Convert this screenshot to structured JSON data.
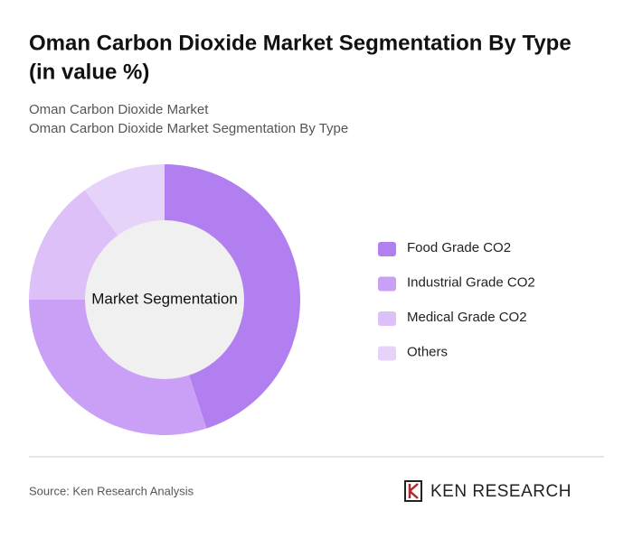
{
  "chart_data": {
    "type": "donut",
    "title": [
      "Oman Carbon Dioxide Market Segmentation By Type",
      "(in value %)"
    ],
    "subtitle": [
      "Oman Carbon Dioxide Market",
      "Oman Carbon Dioxide Market Segmentation By Type"
    ],
    "center_label": "Market Segmentation",
    "series": [
      {
        "name": "Food Grade CO2",
        "color": "#b27ff0",
        "values": [
          45
        ]
      },
      {
        "name": "Industrial Grade CO2",
        "color": "#c9a0f5",
        "values": [
          30
        ]
      },
      {
        "name": "Medical Grade CO2",
        "color": "#dcc0f7",
        "values": [
          15
        ]
      },
      {
        "name": "Others",
        "color": "#e6d3f9",
        "values": [
          10
        ]
      }
    ],
    "source": "Source: Ken Research Analysis",
    "logo": "KEN RESEARCH"
  }
}
